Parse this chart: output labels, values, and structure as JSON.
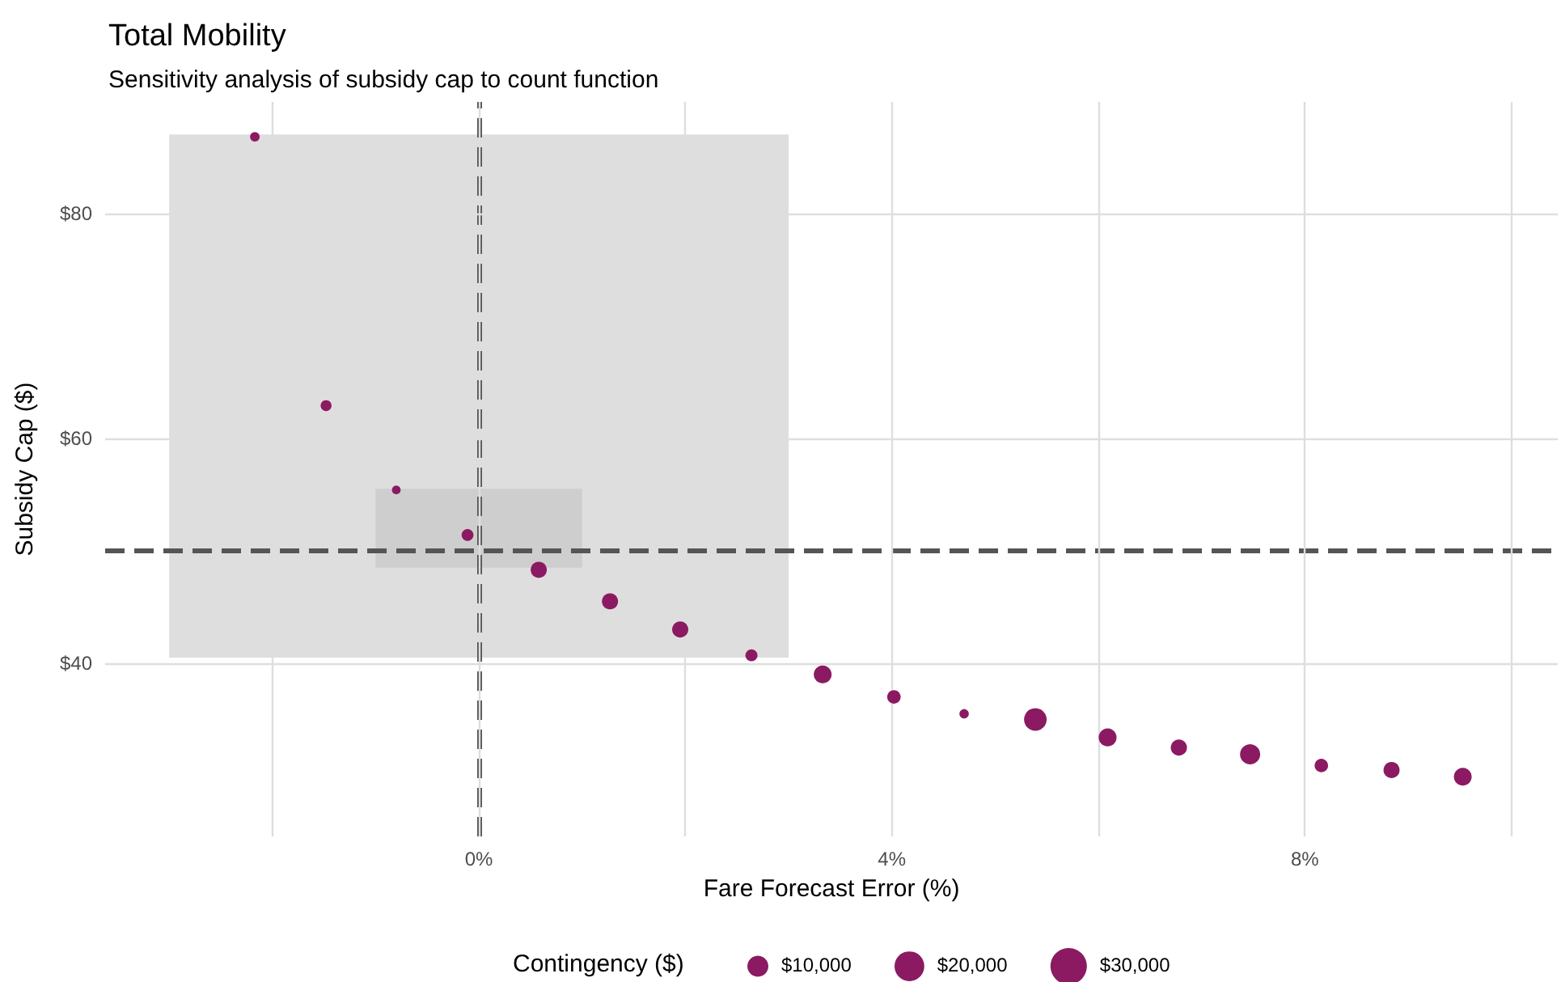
{
  "chart_data": {
    "type": "bubble",
    "title": "Total Mobility",
    "subtitle": "Sensitivity analysis of subsidy cap to count function",
    "xlabel": "Fare Forecast Error (%)",
    "ylabel": "Subsidy Cap ($)",
    "legend_title": "Contingency ($)",
    "series": [
      {
        "type": "line",
        "x": [
          -3,
          3
        ],
        "values": [
          null,
          null
        ],
        "lower": [
          40.5,
          40.5
        ],
        "upper": [
          87,
          87
        ],
        "color": "#dedede"
      },
      {
        "type": "line",
        "x": [
          -1,
          1
        ],
        "values": [
          null,
          null
        ],
        "lower": [
          48.5,
          48.5
        ],
        "upper": [
          55.5,
          55.5
        ],
        "color": "#cecece"
      },
      {
        "x": [
          -2.17,
          -1.48,
          -0.8,
          -0.11,
          0.58,
          1.27,
          1.95,
          2.64,
          3.33,
          4.02,
          4.7,
          5.39,
          6.09,
          6.78,
          7.47,
          8.16,
          8.84,
          9.53
        ],
        "values": [
          86.8,
          62.9,
          55.4,
          51.4,
          48.3,
          45.5,
          43.0,
          40.7,
          39.0,
          37.0,
          35.5,
          35.0,
          33.4,
          32.5,
          31.9,
          30.9,
          30.5,
          29.9
        ],
        "sizes": [
          2100,
          2700,
          1700,
          3200,
          5900,
          5900,
          5900,
          3300,
          7200,
          4100,
          2000,
          11600,
          7200,
          5900,
          9200,
          4100,
          5900,
          7200
        ],
        "color": "#8b1a62"
      }
    ],
    "size_legend": [
      {
        "value": 10000,
        "label": "$10,000"
      },
      {
        "value": 20000,
        "label": "$20,000"
      },
      {
        "value": 30000,
        "label": "$30,000"
      }
    ],
    "xlim": [
      -3.62,
      10.45
    ],
    "ylim": [
      24.6,
      89.9
    ],
    "xticks": [
      {
        "value": -2,
        "label": null
      },
      {
        "value": 0,
        "label": "0%"
      },
      {
        "value": 2,
        "label": null
      },
      {
        "value": 4,
        "label": "4%"
      },
      {
        "value": 6,
        "label": null
      },
      {
        "value": 8,
        "label": "8%"
      },
      {
        "value": 10,
        "label": null
      }
    ],
    "yticks": [
      {
        "value": 40,
        "label": "$40"
      },
      {
        "value": 60,
        "label": "$60"
      },
      {
        "value": 80,
        "label": "$80"
      }
    ],
    "ref_lines": [
      {
        "axis": "x",
        "value": 0,
        "color": "#555555",
        "line_style": "dashed"
      },
      {
        "axis": "y",
        "value": 50,
        "color": "#555555",
        "line_style": "dashed"
      }
    ],
    "grid": true,
    "marker": "circle"
  }
}
